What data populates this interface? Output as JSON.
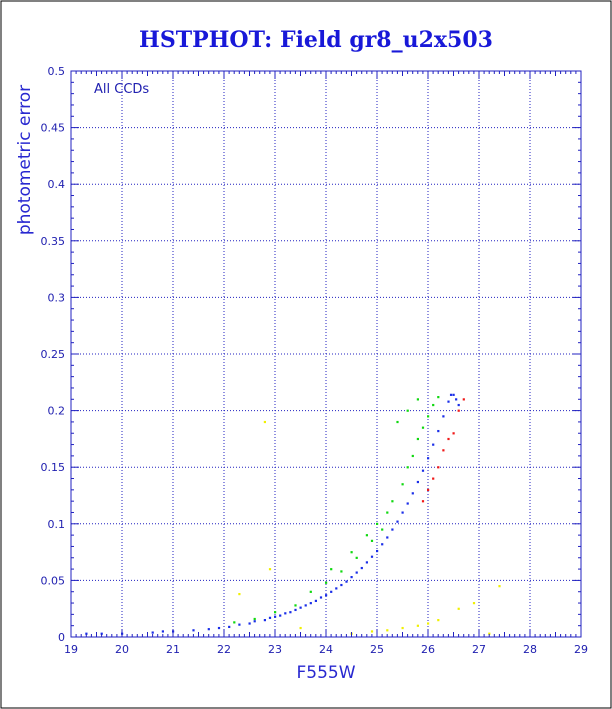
{
  "chart_data": {
    "type": "scatter",
    "title": "HSTPHOT: Field gr8_u2x503",
    "xlabel": "F555W",
    "ylabel": "photometric error",
    "annotation": "All CCDs",
    "xlim": [
      19,
      29
    ],
    "ylim": [
      0,
      0.5
    ],
    "x_ticks": [
      "19",
      "20",
      "21",
      "22",
      "23",
      "24",
      "25",
      "26",
      "27",
      "28",
      "29"
    ],
    "y_ticks": [
      "0",
      "0.05",
      "0.1",
      "0.15",
      "0.2",
      "0.25",
      "0.3",
      "0.35",
      "0.4",
      "0.45",
      "0.5"
    ],
    "grid": true,
    "error_cut": 0.215,
    "series": [
      {
        "color": "#1a2ee8",
        "points": [
          [
            19.3,
            0.003
          ],
          [
            19.6,
            0.003
          ],
          [
            20.0,
            0.003
          ],
          [
            20.6,
            0.004
          ],
          [
            20.8,
            0.005
          ],
          [
            21.0,
            0.005
          ],
          [
            21.4,
            0.006
          ],
          [
            21.7,
            0.007
          ],
          [
            21.9,
            0.008
          ],
          [
            22.1,
            0.009
          ],
          [
            22.3,
            0.011
          ],
          [
            22.5,
            0.012
          ],
          [
            22.6,
            0.014
          ],
          [
            22.8,
            0.015
          ],
          [
            22.9,
            0.017
          ],
          [
            23.0,
            0.018
          ],
          [
            23.1,
            0.019
          ],
          [
            23.2,
            0.021
          ],
          [
            23.3,
            0.022
          ],
          [
            23.4,
            0.024
          ],
          [
            23.5,
            0.026
          ],
          [
            23.6,
            0.028
          ],
          [
            23.7,
            0.03
          ],
          [
            23.8,
            0.032
          ],
          [
            23.9,
            0.035
          ],
          [
            24.0,
            0.037
          ],
          [
            24.1,
            0.04
          ],
          [
            24.2,
            0.043
          ],
          [
            24.3,
            0.046
          ],
          [
            24.4,
            0.049
          ],
          [
            24.5,
            0.053
          ],
          [
            24.6,
            0.057
          ],
          [
            24.7,
            0.061
          ],
          [
            24.8,
            0.066
          ],
          [
            24.9,
            0.071
          ],
          [
            25.0,
            0.076
          ],
          [
            25.1,
            0.082
          ],
          [
            25.2,
            0.088
          ],
          [
            25.3,
            0.095
          ],
          [
            25.4,
            0.102
          ],
          [
            25.5,
            0.11
          ],
          [
            25.6,
            0.118
          ],
          [
            25.7,
            0.127
          ],
          [
            25.8,
            0.137
          ],
          [
            25.9,
            0.147
          ],
          [
            26.0,
            0.158
          ],
          [
            26.1,
            0.17
          ],
          [
            26.2,
            0.182
          ],
          [
            26.3,
            0.195
          ],
          [
            26.4,
            0.208
          ],
          [
            26.45,
            0.214
          ],
          [
            26.5,
            0.214
          ],
          [
            26.55,
            0.21
          ],
          [
            26.6,
            0.205
          ]
        ]
      },
      {
        "color": "#10d810",
        "points": [
          [
            22.2,
            0.013
          ],
          [
            22.6,
            0.016
          ],
          [
            23.0,
            0.022
          ],
          [
            23.4,
            0.028
          ],
          [
            23.7,
            0.04
          ],
          [
            24.0,
            0.048
          ],
          [
            24.1,
            0.06
          ],
          [
            24.3,
            0.058
          ],
          [
            24.5,
            0.075
          ],
          [
            24.6,
            0.07
          ],
          [
            24.8,
            0.09
          ],
          [
            24.9,
            0.085
          ],
          [
            25.0,
            0.1
          ],
          [
            25.1,
            0.095
          ],
          [
            25.2,
            0.11
          ],
          [
            25.3,
            0.12
          ],
          [
            25.5,
            0.135
          ],
          [
            25.6,
            0.15
          ],
          [
            25.7,
            0.16
          ],
          [
            25.8,
            0.175
          ],
          [
            25.9,
            0.185
          ],
          [
            26.0,
            0.195
          ],
          [
            26.1,
            0.205
          ],
          [
            26.2,
            0.212
          ],
          [
            25.4,
            0.19
          ],
          [
            25.6,
            0.2
          ],
          [
            25.8,
            0.21
          ]
        ]
      },
      {
        "color": "#f01818",
        "points": [
          [
            25.9,
            0.12
          ],
          [
            26.0,
            0.13
          ],
          [
            26.2,
            0.15
          ],
          [
            26.3,
            0.165
          ],
          [
            26.5,
            0.18
          ],
          [
            26.6,
            0.2
          ],
          [
            26.7,
            0.21
          ],
          [
            26.4,
            0.175
          ],
          [
            26.1,
            0.14
          ]
        ]
      },
      {
        "color": "#f0f000",
        "points": [
          [
            22.3,
            0.038
          ],
          [
            22.9,
            0.06
          ],
          [
            23.5,
            0.008
          ],
          [
            24.5,
            0.003
          ],
          [
            24.9,
            0.005
          ],
          [
            25.2,
            0.006
          ],
          [
            25.5,
            0.008
          ],
          [
            25.8,
            0.01
          ],
          [
            26.0,
            0.012
          ],
          [
            26.2,
            0.015
          ],
          [
            26.6,
            0.025
          ],
          [
            26.9,
            0.03
          ],
          [
            27.4,
            0.045
          ],
          [
            27.2,
            0.003
          ],
          [
            22.8,
            0.19
          ]
        ]
      }
    ]
  }
}
